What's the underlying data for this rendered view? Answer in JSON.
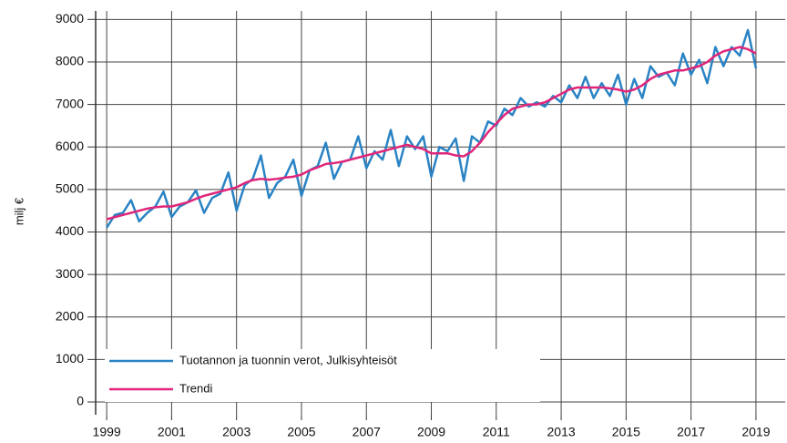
{
  "chart_data": {
    "type": "line",
    "ylabel": "milj €",
    "x": [
      1999,
      1999.25,
      1999.5,
      1999.75,
      2000,
      2000.25,
      2000.5,
      2000.75,
      2001,
      2001.25,
      2001.5,
      2001.75,
      2002,
      2002.25,
      2002.5,
      2002.75,
      2003,
      2003.25,
      2003.5,
      2003.75,
      2004,
      2004.25,
      2004.5,
      2004.75,
      2005,
      2005.25,
      2005.5,
      2005.75,
      2006,
      2006.25,
      2006.5,
      2006.75,
      2007,
      2007.25,
      2007.5,
      2007.75,
      2008,
      2008.25,
      2008.5,
      2008.75,
      2009,
      2009.25,
      2009.5,
      2009.75,
      2010,
      2010.25,
      2010.5,
      2010.75,
      2011,
      2011.25,
      2011.5,
      2011.75,
      2012,
      2012.25,
      2012.5,
      2012.75,
      2013,
      2013.25,
      2013.5,
      2013.75,
      2014,
      2014.25,
      2014.5,
      2014.75,
      2015,
      2015.25,
      2015.5,
      2015.75,
      2016,
      2016.25,
      2016.5,
      2016.75,
      2017,
      2017.25,
      2017.5,
      2017.75,
      2018,
      2018.25,
      2018.5,
      2018.75,
      2019
    ],
    "series": [
      {
        "name": "Tuotannon ja tuonnin verot, Julkisyhteisöt",
        "color": "#2a83c4",
        "values": [
          4100,
          4400,
          4450,
          4750,
          4250,
          4450,
          4600,
          4950,
          4350,
          4600,
          4700,
          4980,
          4450,
          4800,
          4900,
          5400,
          4500,
          5100,
          5250,
          5800,
          4800,
          5150,
          5300,
          5700,
          4850,
          5450,
          5550,
          6100,
          5250,
          5650,
          5700,
          6250,
          5500,
          5900,
          5700,
          6400,
          5550,
          6250,
          5950,
          6250,
          5300,
          6000,
          5900,
          6200,
          5200,
          6250,
          6100,
          6600,
          6500,
          6900,
          6750,
          7150,
          6950,
          7050,
          6950,
          7200,
          7050,
          7450,
          7150,
          7650,
          7150,
          7500,
          7200,
          7700,
          7000,
          7600,
          7150,
          7900,
          7650,
          7750,
          7450,
          8200,
          7700,
          8050,
          7500,
          8350,
          7900,
          8350,
          8150,
          8750,
          7850
        ]
      },
      {
        "name": "Trendi",
        "color": "#e0267a",
        "values": [
          4300,
          4350,
          4400,
          4450,
          4500,
          4550,
          4580,
          4600,
          4600,
          4650,
          4700,
          4780,
          4850,
          4900,
          4950,
          5000,
          5050,
          5150,
          5220,
          5250,
          5230,
          5250,
          5280,
          5300,
          5350,
          5450,
          5520,
          5600,
          5620,
          5650,
          5700,
          5750,
          5800,
          5850,
          5900,
          5950,
          6000,
          6050,
          6000,
          5950,
          5850,
          5850,
          5850,
          5800,
          5780,
          5900,
          6100,
          6350,
          6550,
          6750,
          6900,
          6950,
          7000,
          7000,
          7050,
          7150,
          7250,
          7350,
          7400,
          7400,
          7400,
          7400,
          7380,
          7350,
          7300,
          7350,
          7450,
          7600,
          7700,
          7750,
          7800,
          7800,
          7850,
          7900,
          8000,
          8150,
          8250,
          8300,
          8350,
          8300,
          8200
        ]
      }
    ],
    "xlim": [
      1998.66,
      2019.9
    ],
    "xticks": [
      1999,
      2001,
      2003,
      2005,
      2007,
      2009,
      2011,
      2013,
      2015,
      2017,
      2019
    ],
    "ylim": [
      -300,
      9200
    ],
    "yticks": [
      0,
      1000,
      2000,
      3000,
      4000,
      5000,
      6000,
      7000,
      8000,
      9000
    ],
    "grid": true,
    "legend": "lower left"
  }
}
